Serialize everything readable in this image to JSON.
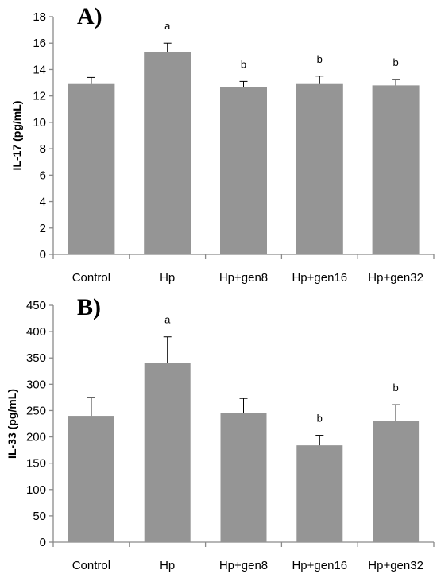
{
  "chart_data": [
    {
      "type": "bar",
      "panel": "A)",
      "ylabel": "IL-17 (pg/mL)",
      "ylim": [
        0,
        18
      ],
      "yticks": [
        0,
        2,
        4,
        6,
        8,
        10,
        12,
        14,
        16,
        18
      ],
      "categories": [
        "Control",
        "Hp",
        "Hp+gen8",
        "Hp+gen16",
        "Hp+gen32"
      ],
      "values": [
        12.9,
        15.3,
        12.7,
        12.9,
        12.8
      ],
      "errors": [
        0.5,
        0.7,
        0.4,
        0.6,
        0.45
      ],
      "annotations": [
        "",
        "a",
        "b",
        "b",
        "b"
      ],
      "bar_color": "#959595",
      "grid": false
    },
    {
      "type": "bar",
      "panel": "B)",
      "ylabel": "IL-33 (pg/mL)",
      "ylim": [
        0,
        450
      ],
      "yticks": [
        0,
        50,
        100,
        150,
        200,
        250,
        300,
        350,
        400,
        450
      ],
      "categories": [
        "Control",
        "Hp",
        "Hp+gen8",
        "Hp+gen16",
        "Hp+gen32"
      ],
      "values": [
        240,
        341,
        245,
        184,
        230
      ],
      "errors": [
        35,
        49,
        28,
        19,
        31
      ],
      "annotations": [
        "",
        "a",
        "",
        "b",
        "b"
      ],
      "bar_color": "#959595",
      "grid": false
    }
  ]
}
